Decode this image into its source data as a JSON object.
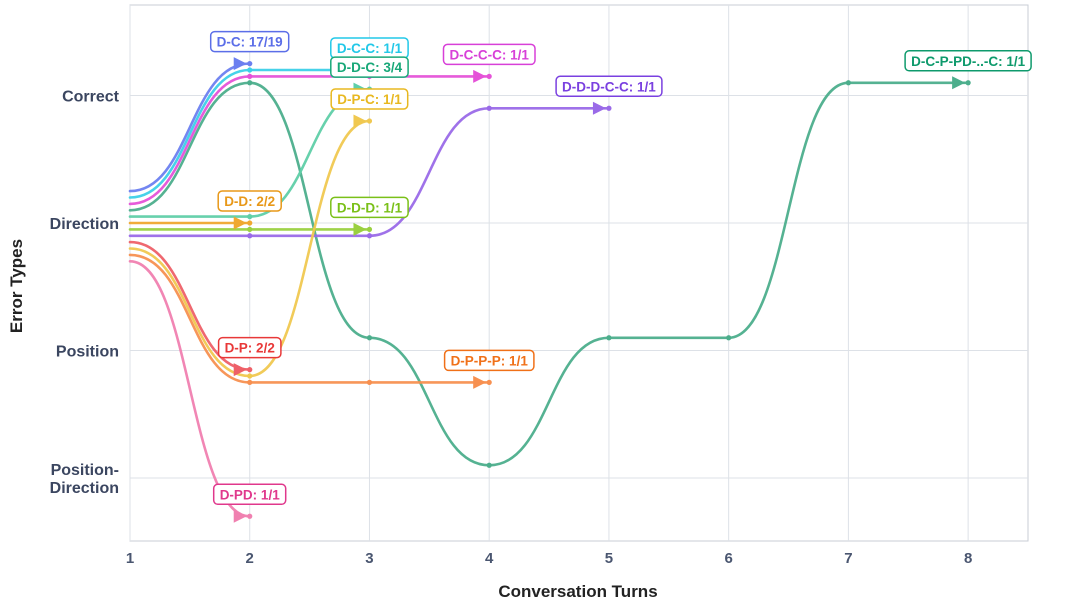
{
  "chart_data": {
    "type": "line",
    "xlabel": "Conversation Turns",
    "ylabel": "Error Types",
    "x_ticks": [
      1,
      2,
      3,
      4,
      5,
      6,
      7,
      8
    ],
    "xlim": [
      1,
      8.5
    ],
    "y_categories": [
      "Position-\nDirection",
      "Position",
      "Direction",
      "Correct"
    ],
    "grid": true,
    "series": [
      {
        "name": "D-C: 17/19",
        "color": "#6b7ff0",
        "offset": 0.25,
        "x": [
          1,
          2
        ],
        "y": [
          "Direction",
          "Correct"
        ]
      },
      {
        "name": "D-C-C: 1/1",
        "color": "#3dd0e8",
        "offset": 0.2,
        "x": [
          1,
          2,
          3
        ],
        "y": [
          "Direction",
          "Correct",
          "Correct"
        ]
      },
      {
        "name": "D-C-C-C: 1/1",
        "color": "#e552d8",
        "offset": 0.15,
        "x": [
          1,
          2,
          3,
          4
        ],
        "y": [
          "Direction",
          "Correct",
          "Correct",
          "Correct"
        ]
      },
      {
        "name": "D-C-P-PD-..-C: 1/1",
        "color": "#4cae8c",
        "offset": 0.1,
        "x": [
          1,
          2,
          3,
          4,
          5,
          6,
          7,
          8
        ],
        "y": [
          "Direction",
          "Correct",
          "Position",
          "Position-\nDirection",
          "Position",
          "Position",
          "Correct",
          "Correct"
        ]
      },
      {
        "name": "D-D-C: 3/4",
        "color": "#5fcfa8",
        "offset": 0.05,
        "x": [
          1,
          2,
          3
        ],
        "y": [
          "Direction",
          "Direction",
          "Correct"
        ]
      },
      {
        "name": "D-D: 2/2",
        "color": "#f0a830",
        "offset": 0.0,
        "x": [
          1,
          2
        ],
        "y": [
          "Direction",
          "Direction"
        ]
      },
      {
        "name": "D-D-D: 1/1",
        "color": "#9ad040",
        "offset": -0.05,
        "x": [
          1,
          2,
          3
        ],
        "y": [
          "Direction",
          "Direction",
          "Direction"
        ]
      },
      {
        "name": "D-D-D-C-C: 1/1",
        "color": "#9a6ae8",
        "offset": -0.1,
        "x": [
          1,
          2,
          3,
          4,
          5
        ],
        "y": [
          "Direction",
          "Direction",
          "Direction",
          "Correct",
          "Correct"
        ]
      },
      {
        "name": "D-P: 2/2",
        "color": "#ee6068",
        "offset": -0.15,
        "x": [
          1,
          2
        ],
        "y": [
          "Direction",
          "Position"
        ]
      },
      {
        "name": "D-P-C: 1/1",
        "color": "#f0c850",
        "offset": -0.2,
        "x": [
          1,
          2,
          3
        ],
        "y": [
          "Direction",
          "Position",
          "Correct"
        ]
      },
      {
        "name": "D-P-P-P: 1/1",
        "color": "#f79050",
        "offset": -0.25,
        "x": [
          1,
          2,
          3,
          4
        ],
        "y": [
          "Direction",
          "Position",
          "Position",
          "Position"
        ]
      },
      {
        "name": "D-PD: 1/1",
        "color": "#f080b0",
        "offset": -0.3,
        "x": [
          1,
          2
        ],
        "y": [
          "Direction",
          "Position-\nDirection"
        ]
      }
    ],
    "end_labels": [
      {
        "text": "D-C: 17/19",
        "series": 0,
        "border": "#5b6ee8"
      },
      {
        "text": "D-C-C: 1/1",
        "series": 1,
        "border": "#22c8e8"
      },
      {
        "text": "D-D-C: 3/4",
        "series": 4,
        "border": "#18a878"
      },
      {
        "text": "D-C-C-C: 1/1",
        "series": 2,
        "border": "#d840d8"
      },
      {
        "text": "D-D-D-C-C: 1/1",
        "series": 7,
        "border": "#7a40e0"
      },
      {
        "text": "D-C-P-PD-..-C: 1/1",
        "series": 3,
        "border": "#0e9a6c"
      },
      {
        "text": "D-P-C: 1/1",
        "series": 9,
        "border": "#e8b820"
      },
      {
        "text": "D-D: 2/2",
        "series": 5,
        "border": "#e89818"
      },
      {
        "text": "D-D-D: 1/1",
        "series": 6,
        "border": "#7ac018"
      },
      {
        "text": "D-P: 2/2",
        "series": 8,
        "border": "#e83838"
      },
      {
        "text": "D-P-P-P: 1/1",
        "series": 10,
        "border": "#f07018"
      },
      {
        "text": "D-PD: 1/1",
        "series": 11,
        "border": "#e0388c"
      }
    ]
  }
}
